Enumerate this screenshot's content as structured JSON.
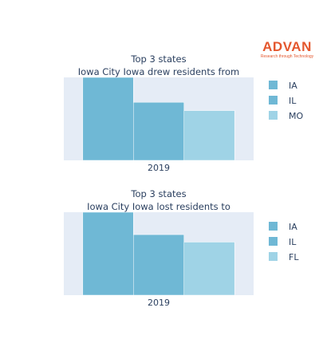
{
  "brand": {
    "name": "ADVAN",
    "tagline": "Research through Technology",
    "color": "#e4572e"
  },
  "chart_data": [
    {
      "type": "bar",
      "title": "Top 3 states",
      "subtitle": "Iowa City Iowa drew residents from",
      "categories": [
        "2019"
      ],
      "series": [
        {
          "name": "IA",
          "values": [
            100
          ],
          "color": "#6fb8d5"
        },
        {
          "name": "IL",
          "values": [
            70
          ],
          "color": "#6fb8d5"
        },
        {
          "name": "MO",
          "values": [
            60
          ],
          "color": "#9fd3e6"
        }
      ],
      "ylim": [
        0,
        100
      ],
      "grid": false,
      "legend": "right"
    },
    {
      "type": "bar",
      "title": "Top 3 states",
      "subtitle": "Iowa City Iowa lost residents to",
      "categories": [
        "2019"
      ],
      "series": [
        {
          "name": "IA",
          "values": [
            100
          ],
          "color": "#6fb8d5"
        },
        {
          "name": "IL",
          "values": [
            73
          ],
          "color": "#6fb8d5"
        },
        {
          "name": "FL",
          "values": [
            64
          ],
          "color": "#9fd3e6"
        }
      ],
      "ylim": [
        0,
        100
      ],
      "grid": false,
      "legend": "right"
    }
  ]
}
